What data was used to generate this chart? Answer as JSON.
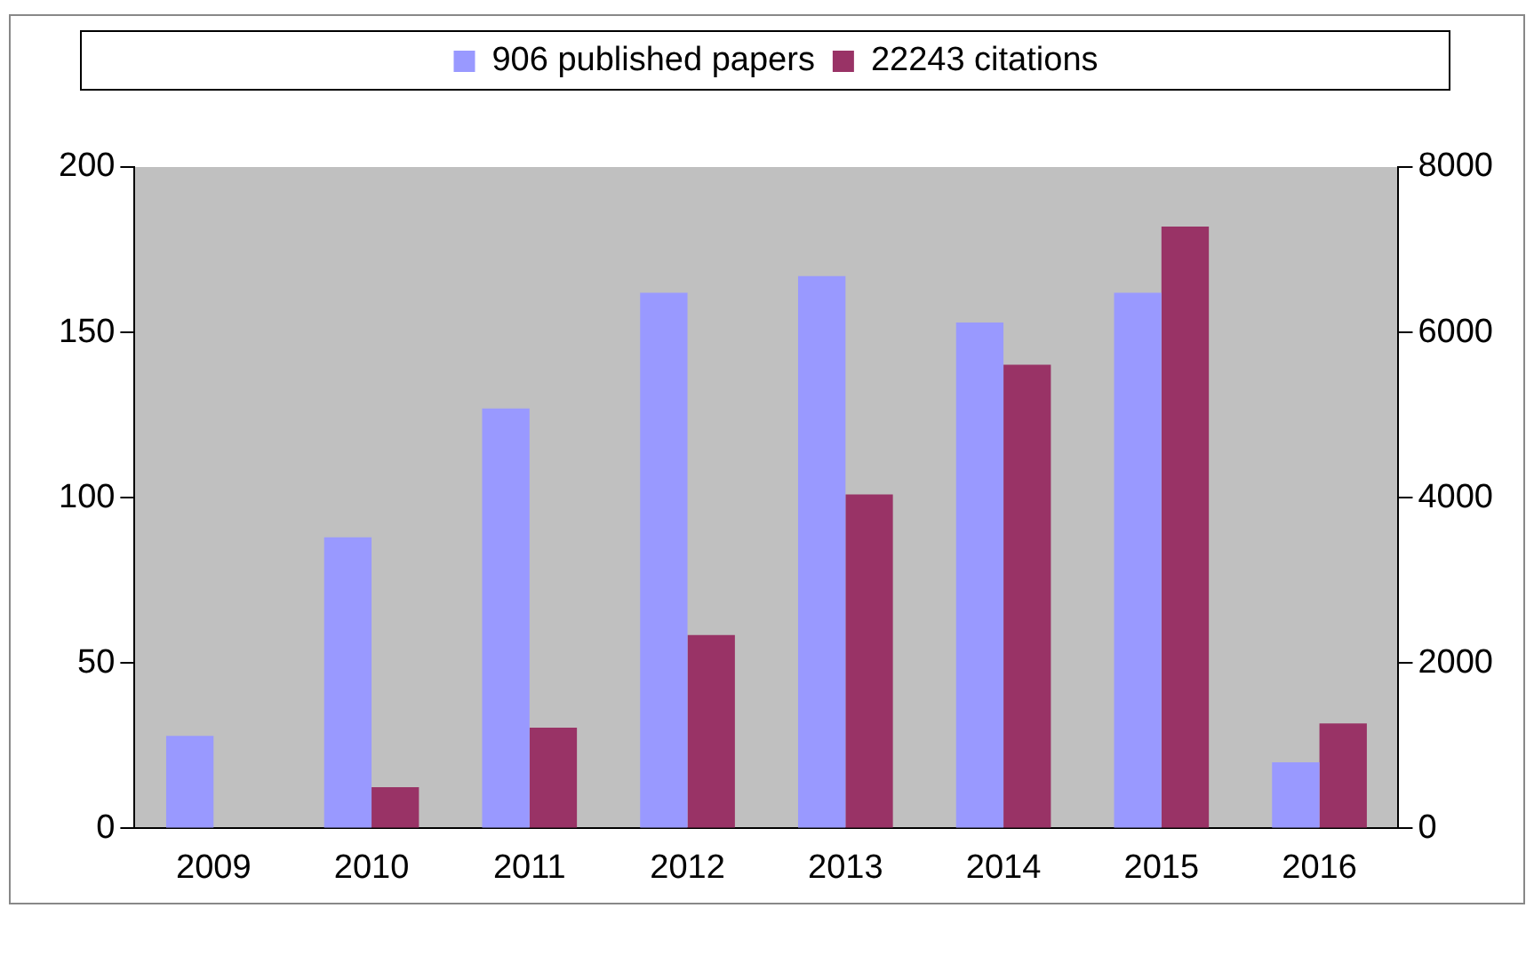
{
  "chart_data": {
    "type": "bar",
    "categories": [
      "2009",
      "2010",
      "2011",
      "2012",
      "2013",
      "2014",
      "2015",
      "2016"
    ],
    "series": [
      {
        "name": "906 published papers",
        "color": "#9999ff",
        "values": [
          28,
          88,
          127,
          162,
          167,
          153,
          162,
          20
        ]
      },
      {
        "name": "22243 citations",
        "color": "#993366",
        "axis": "y2",
        "values": [
          null,
          500,
          1220,
          2340,
          4040,
          5610,
          7280,
          1270
        ]
      }
    ],
    "ylim": [
      0,
      200
    ],
    "yticks": [
      0,
      50,
      100,
      150,
      200
    ],
    "y2lim": [
      0,
      8000
    ],
    "y2ticks": [
      0,
      2000,
      4000,
      6000,
      8000
    ],
    "grid": false,
    "legend": "top"
  }
}
